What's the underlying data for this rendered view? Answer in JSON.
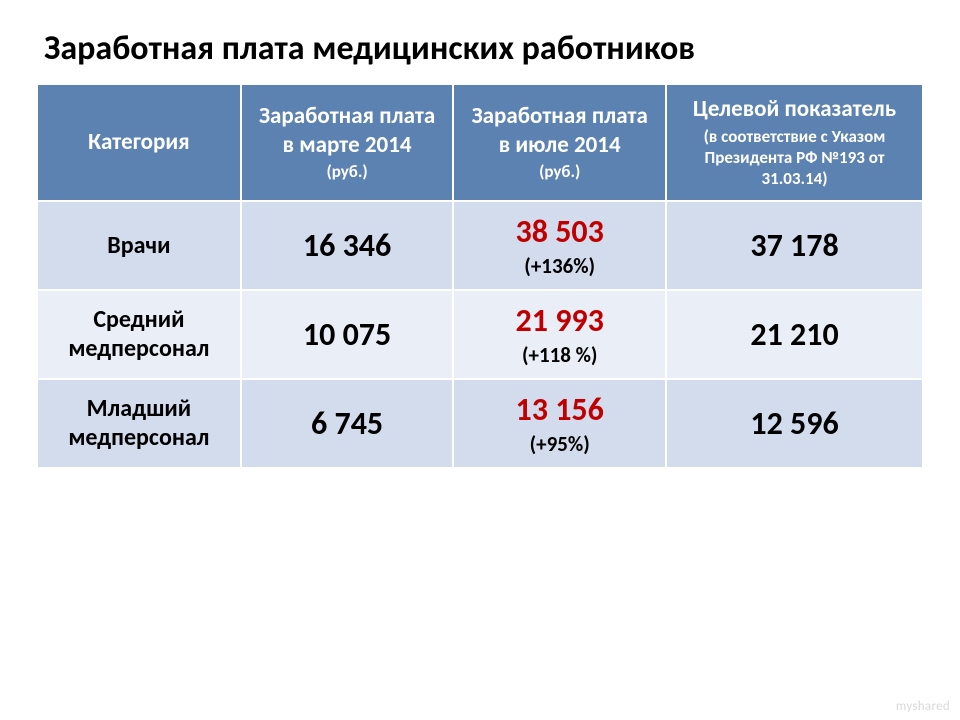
{
  "title": "Заработная плата медицинских работников",
  "table": {
    "type": "table",
    "header_bg": "#5b82b0",
    "header_fg": "#ffffff",
    "row_odd_bg": "#d3dced",
    "row_even_bg": "#eaeef7",
    "border_color": "#ffffff",
    "highlight_color": "#c00000",
    "columns": {
      "category": "Категория",
      "march": {
        "l1": "Заработная плата в марте 2014",
        "l2": "(руб.)"
      },
      "july": {
        "l1": "Заработная плата в июле 2014",
        "l2": "(руб.)"
      },
      "target": {
        "l1": "Целевой показатель",
        "l2": "(в соответствие с Указом Президента РФ №193 от 31.03.14)"
      }
    },
    "rows": [
      {
        "category": "Врачи",
        "march": "16 346",
        "july": "38 503",
        "delta": "(+136%)",
        "target": "37 178"
      },
      {
        "category": "Средний медперсонал",
        "march": "10 075",
        "july": "21 993",
        "delta": "(+118 %)",
        "target": "21 210"
      },
      {
        "category": "Младший медперсонал",
        "march": "6 745",
        "july": "13 156",
        "delta": "(+95%)",
        "target": "12 596"
      }
    ]
  },
  "watermark": "myshared"
}
